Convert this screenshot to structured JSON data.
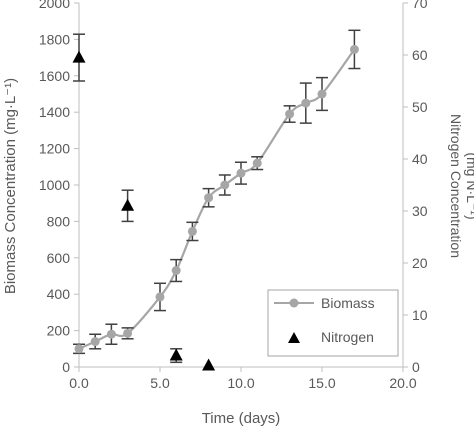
{
  "chart_data": {
    "type": "line",
    "xlabel": "Time (days)",
    "ylabel_left": "Biomass Concentration (mg·L⁻¹)",
    "ylabel_right_line1": "Nitrogen Concentration",
    "ylabel_right_line2": "(mg N·L⁻¹)",
    "xlim": [
      0,
      20
    ],
    "ylim_left": [
      0,
      2000
    ],
    "ylim_right": [
      0,
      70
    ],
    "x_ticks": [
      "0.0",
      "5.0",
      "10.0",
      "15.0",
      "20.0"
    ],
    "y_left_ticks": [
      "0",
      "200",
      "400",
      "600",
      "800",
      "1000",
      "1200",
      "1400",
      "1600",
      "1800",
      "2000"
    ],
    "y_right_ticks": [
      "0",
      "10",
      "20",
      "30",
      "40",
      "50",
      "60",
      "70"
    ],
    "grid": false,
    "legend_position": "lower-right",
    "series": [
      {
        "name": "Biomass",
        "axis": "left",
        "marker": "circle",
        "color": "#a6a6a6",
        "points": [
          {
            "x": 0,
            "y": 100,
            "err": 25
          },
          {
            "x": 1,
            "y": 140,
            "err": 40
          },
          {
            "x": 2,
            "y": 180,
            "err": 55
          },
          {
            "x": 3,
            "y": 185,
            "err": 30
          },
          {
            "x": 5,
            "y": 385,
            "err": 75
          },
          {
            "x": 6,
            "y": 530,
            "err": 60
          },
          {
            "x": 7,
            "y": 745,
            "err": 50
          },
          {
            "x": 8,
            "y": 930,
            "err": 50
          },
          {
            "x": 9,
            "y": 1000,
            "err": 55
          },
          {
            "x": 10,
            "y": 1065,
            "err": 60
          },
          {
            "x": 11,
            "y": 1120,
            "err": 35
          },
          {
            "x": 13,
            "y": 1390,
            "err": 45
          },
          {
            "x": 14,
            "y": 1450,
            "err": 110
          },
          {
            "x": 15,
            "y": 1500,
            "err": 90
          },
          {
            "x": 17,
            "y": 1745,
            "err": 105
          }
        ]
      },
      {
        "name": "Nitrogen",
        "axis": "right",
        "marker": "triangle",
        "color": "#000000",
        "points": [
          {
            "x": 0,
            "y": 59.5,
            "err": 4.5
          },
          {
            "x": 3,
            "y": 31,
            "err": 3
          },
          {
            "x": 6,
            "y": 2.2,
            "err": 1.3
          },
          {
            "x": 8,
            "y": 0.3,
            "err": 0
          }
        ]
      }
    ]
  }
}
